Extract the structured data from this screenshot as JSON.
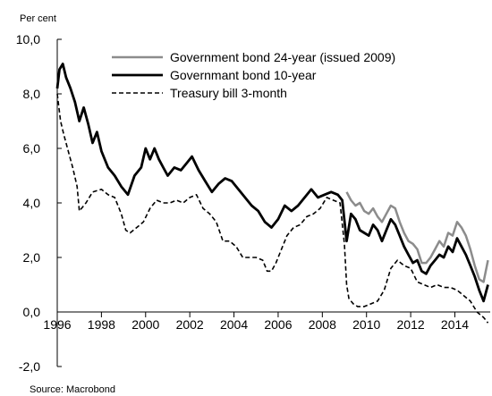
{
  "chart_data": {
    "type": "line",
    "ylabel": "Per cent",
    "source": "Source: Macrobond",
    "ylim": [
      -2,
      10
    ],
    "xlim": [
      1996,
      2015.6
    ],
    "y_ticks": [
      "-2,0",
      "0,0",
      "2,0",
      "4,0",
      "6,0",
      "8,0",
      "10,0"
    ],
    "x_ticks": [
      "1996",
      "1998",
      "2000",
      "2002",
      "2004",
      "2006",
      "2008",
      "2010",
      "2012",
      "2014"
    ],
    "grid": false,
    "legend_position": "top",
    "series": [
      {
        "name": "Government bond 24-year (issued 2009)",
        "color": "#8c8c8c",
        "style": "solid",
        "x": [
          2009.1,
          2009.3,
          2009.5,
          2009.7,
          2009.9,
          2010.1,
          2010.3,
          2010.5,
          2010.7,
          2010.9,
          2011.1,
          2011.3,
          2011.5,
          2011.7,
          2011.9,
          2012.1,
          2012.3,
          2012.5,
          2012.7,
          2012.9,
          2013.1,
          2013.3,
          2013.5,
          2013.7,
          2013.9,
          2014.1,
          2014.3,
          2014.5,
          2014.7,
          2014.9,
          2015.1,
          2015.3,
          2015.5
        ],
        "y": [
          4.4,
          4.1,
          3.9,
          4.0,
          3.7,
          3.6,
          3.8,
          3.5,
          3.3,
          3.6,
          3.9,
          3.8,
          3.3,
          2.9,
          2.6,
          2.5,
          2.3,
          1.8,
          1.8,
          2.0,
          2.3,
          2.6,
          2.4,
          2.9,
          2.8,
          3.3,
          3.1,
          2.8,
          2.3,
          1.7,
          1.2,
          1.1,
          1.9
        ]
      },
      {
        "name": "Governmant bond 10-year",
        "color": "#000000",
        "style": "solid",
        "x": [
          1996.0,
          1996.1,
          1996.25,
          1996.4,
          1996.6,
          1996.8,
          1997.0,
          1997.2,
          1997.4,
          1997.6,
          1997.8,
          1998.0,
          1998.3,
          1998.6,
          1998.9,
          1999.2,
          1999.5,
          1999.8,
          2000.0,
          2000.2,
          2000.4,
          2000.6,
          2000.8,
          2001.0,
          2001.3,
          2001.6,
          2001.9,
          2002.1,
          2002.4,
          2002.7,
          2003.0,
          2003.3,
          2003.6,
          2003.9,
          2004.2,
          2004.5,
          2004.8,
          2005.1,
          2005.4,
          2005.7,
          2006.0,
          2006.3,
          2006.6,
          2006.9,
          2007.2,
          2007.5,
          2007.8,
          2008.1,
          2008.4,
          2008.7,
          2008.9,
          2009.1,
          2009.3,
          2009.5,
          2009.7,
          2009.9,
          2010.1,
          2010.3,
          2010.5,
          2010.7,
          2010.9,
          2011.1,
          2011.3,
          2011.5,
          2011.7,
          2011.9,
          2012.1,
          2012.3,
          2012.5,
          2012.7,
          2012.9,
          2013.1,
          2013.3,
          2013.5,
          2013.7,
          2013.9,
          2014.1,
          2014.3,
          2014.5,
          2014.7,
          2014.9,
          2015.1,
          2015.3,
          2015.5
        ],
        "y": [
          8.2,
          8.9,
          9.1,
          8.6,
          8.2,
          7.7,
          7.0,
          7.5,
          6.9,
          6.2,
          6.6,
          5.9,
          5.3,
          5.0,
          4.6,
          4.3,
          5.0,
          5.3,
          6.0,
          5.6,
          6.0,
          5.6,
          5.3,
          5.0,
          5.3,
          5.2,
          5.5,
          5.7,
          5.2,
          4.8,
          4.4,
          4.7,
          4.9,
          4.8,
          4.5,
          4.2,
          3.9,
          3.7,
          3.3,
          3.1,
          3.4,
          3.9,
          3.7,
          3.9,
          4.2,
          4.5,
          4.2,
          4.3,
          4.4,
          4.3,
          4.1,
          2.6,
          3.6,
          3.4,
          3.0,
          2.9,
          2.8,
          3.2,
          3.0,
          2.6,
          3.0,
          3.4,
          3.2,
          2.8,
          2.4,
          2.1,
          1.8,
          1.9,
          1.5,
          1.4,
          1.7,
          1.9,
          2.1,
          2.0,
          2.4,
          2.2,
          2.7,
          2.4,
          2.1,
          1.7,
          1.3,
          0.8,
          0.4,
          1.0
        ]
      },
      {
        "name": "Treasury bill 3-month",
        "color": "#000000",
        "style": "dashed",
        "x": [
          1996.0,
          1996.15,
          1996.3,
          1996.5,
          1996.7,
          1996.9,
          1997.0,
          1997.3,
          1997.6,
          1998.0,
          1998.3,
          1998.6,
          1998.9,
          1999.1,
          1999.3,
          1999.6,
          1999.9,
          2000.2,
          2000.5,
          2000.8,
          2001.1,
          2001.4,
          2001.7,
          2002.0,
          2002.3,
          2002.6,
          2002.9,
          2003.2,
          2003.5,
          2003.8,
          2004.1,
          2004.4,
          2004.7,
          2005.0,
          2005.3,
          2005.5,
          2005.7,
          2005.9,
          2006.1,
          2006.4,
          2006.7,
          2007.0,
          2007.3,
          2007.6,
          2007.9,
          2008.2,
          2008.5,
          2008.8,
          2009.0,
          2009.1,
          2009.2,
          2009.4,
          2009.6,
          2009.9,
          2010.2,
          2010.5,
          2010.8,
          2011.1,
          2011.4,
          2011.7,
          2012.0,
          2012.3,
          2012.6,
          2012.9,
          2013.2,
          2013.5,
          2013.8,
          2014.1,
          2014.4,
          2014.7,
          2015.0,
          2015.3,
          2015.5
        ],
        "y": [
          8.0,
          7.0,
          6.5,
          5.9,
          5.3,
          4.6,
          3.7,
          4.0,
          4.4,
          4.5,
          4.3,
          4.2,
          3.6,
          3.0,
          2.9,
          3.1,
          3.3,
          3.8,
          4.1,
          4.0,
          4.0,
          4.1,
          4.0,
          4.2,
          4.3,
          3.8,
          3.6,
          3.3,
          2.6,
          2.6,
          2.4,
          2.0,
          2.0,
          2.0,
          1.9,
          1.5,
          1.5,
          1.8,
          2.2,
          2.8,
          3.1,
          3.2,
          3.5,
          3.6,
          3.8,
          4.2,
          4.1,
          4.0,
          2.5,
          1.0,
          0.5,
          0.3,
          0.2,
          0.2,
          0.3,
          0.4,
          0.8,
          1.6,
          1.9,
          1.7,
          1.6,
          1.1,
          1.0,
          0.9,
          1.0,
          0.9,
          0.9,
          0.8,
          0.6,
          0.4,
          0.0,
          -0.2,
          -0.4
        ]
      }
    ]
  }
}
